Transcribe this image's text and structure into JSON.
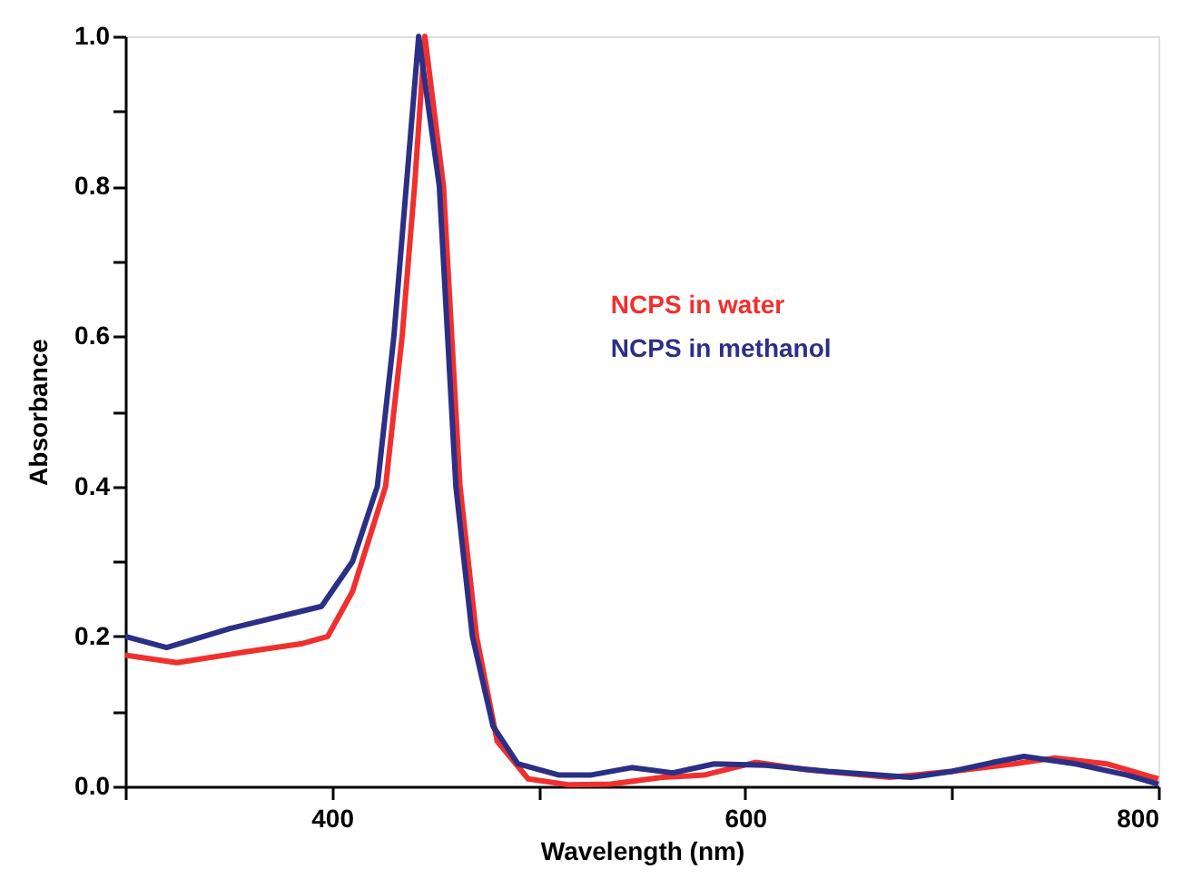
{
  "chart_data": {
    "type": "line",
    "xlabel": "Wavelength (nm)",
    "ylabel": "Absorbance",
    "xlim": [
      300,
      800
    ],
    "ylim": [
      0,
      1.0
    ],
    "xticks": [
      {
        "value": 300,
        "label": null
      },
      400,
      {
        "value": 500,
        "label": null
      },
      600,
      {
        "value": 700,
        "label": null
      },
      800
    ],
    "yticks": [
      "0.0",
      {
        "value": 0.1,
        "label": null
      },
      0.2,
      {
        "value": 0.3,
        "label": null
      },
      0.4,
      {
        "value": 0.5,
        "label": null
      },
      0.6,
      {
        "value": 0.7,
        "label": null
      },
      0.8,
      {
        "value": 0.9,
        "label": null
      },
      "1.0"
    ],
    "grid": false,
    "legend": "right",
    "marker": "none",
    "line_style": "solid",
    "series": [
      {
        "name": "NCPS in water",
        "color": "#f0302e",
        "x": [
          300,
          325,
          360,
          385,
          398,
          410,
          426,
          434,
          440,
          445,
          454,
          458,
          462,
          470,
          480,
          495,
          515,
          535,
          560,
          580,
          605,
          630,
          670,
          700,
          730,
          750,
          775,
          800
        ],
        "values": [
          0.175,
          0.165,
          0.18,
          0.19,
          0.2,
          0.26,
          0.4,
          0.6,
          0.8,
          1.0,
          0.8,
          0.6,
          0.4,
          0.2,
          0.06,
          0.01,
          0.002,
          0.003,
          0.012,
          0.015,
          0.032,
          0.022,
          0.012,
          0.02,
          0.03,
          0.038,
          0.03,
          0.01
        ]
      },
      {
        "name": "NCPS in methanol",
        "color": "#2b2f86",
        "x": [
          300,
          320,
          350,
          380,
          395,
          410,
          422,
          430,
          436,
          442,
          452,
          456,
          460,
          468,
          478,
          490,
          510,
          525,
          545,
          565,
          585,
          610,
          640,
          680,
          700,
          720,
          735,
          760,
          785,
          800
        ],
        "values": [
          0.2,
          0.185,
          0.21,
          0.23,
          0.24,
          0.3,
          0.4,
          0.6,
          0.8,
          1.0,
          0.8,
          0.6,
          0.4,
          0.2,
          0.08,
          0.03,
          0.015,
          0.015,
          0.025,
          0.018,
          0.03,
          0.028,
          0.02,
          0.012,
          0.02,
          0.032,
          0.04,
          0.03,
          0.015,
          0.003
        ]
      }
    ]
  }
}
